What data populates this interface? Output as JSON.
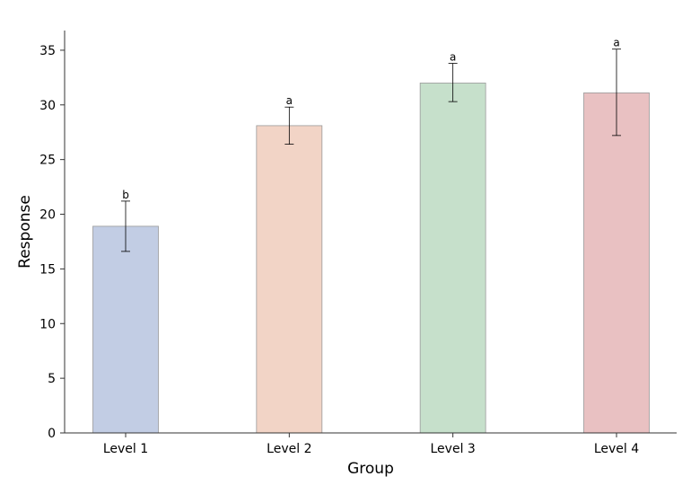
{
  "chart_data": {
    "type": "bar",
    "title": "",
    "xlabel": "Group",
    "ylabel": "Response",
    "categories": [
      "Level 1",
      "Level 2",
      "Level 3",
      "Level 4"
    ],
    "values": [
      18.9,
      28.1,
      32.0,
      31.1
    ],
    "error_low": [
      16.6,
      26.4,
      30.3,
      27.2
    ],
    "error_high": [
      21.2,
      29.8,
      33.8,
      35.1
    ],
    "significance_labels": [
      "b",
      "a",
      "a",
      "a"
    ],
    "colors": [
      "#c2cde4",
      "#f2d4c6",
      "#c6e0cb",
      "#e9c1c2"
    ],
    "ylim": [
      0,
      36.8
    ],
    "yticks": [
      0,
      5,
      10,
      15,
      20,
      25,
      30,
      35
    ],
    "grid": false,
    "legend": "none"
  }
}
